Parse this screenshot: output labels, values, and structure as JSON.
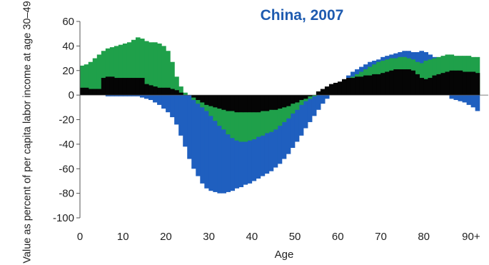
{
  "chart_data": {
    "type": "area",
    "title": "China, 2007",
    "xlabel": "Age",
    "ylabel": "Value as percent of per capita labor income at age 30–49",
    "xlim": [
      0,
      95
    ],
    "ylim": [
      -100,
      60
    ],
    "xticks": [
      0,
      10,
      20,
      30,
      40,
      50,
      60,
      70,
      80,
      90
    ],
    "xtick_labels": [
      "0",
      "10",
      "20",
      "30",
      "40",
      "50",
      "60",
      "70",
      "80",
      "90+"
    ],
    "yticks": [
      60,
      40,
      20,
      0,
      -20,
      -40,
      -60,
      -80,
      -100
    ],
    "ytick_labels": [
      "60",
      "40",
      "20",
      "0",
      "-20",
      "-40",
      "-60",
      "-80",
      "-100"
    ],
    "grid": false,
    "legend": "none",
    "x": [
      0,
      1,
      2,
      3,
      4,
      5,
      6,
      7,
      8,
      9,
      10,
      11,
      12,
      13,
      14,
      15,
      16,
      17,
      18,
      19,
      20,
      21,
      22,
      23,
      24,
      25,
      26,
      27,
      28,
      29,
      30,
      31,
      32,
      33,
      34,
      35,
      36,
      37,
      38,
      39,
      40,
      41,
      42,
      43,
      44,
      45,
      46,
      47,
      48,
      49,
      50,
      51,
      52,
      53,
      54,
      55,
      56,
      57,
      58,
      59,
      60,
      61,
      62,
      63,
      64,
      65,
      66,
      67,
      68,
      69,
      70,
      71,
      72,
      73,
      74,
      75,
      76,
      77,
      78,
      79,
      80,
      81,
      82,
      83,
      84,
      85,
      86,
      87,
      88,
      89,
      90,
      91,
      92
    ],
    "series": [
      {
        "color": "#1f5fbf",
        "values": [
          0,
          0,
          0,
          0,
          0,
          0,
          -1,
          -1,
          -1,
          -1,
          -1,
          -1,
          -1,
          -1,
          -2,
          -3,
          -4,
          -6,
          -8,
          -11,
          -14,
          -18,
          -24,
          -33,
          -42,
          -52,
          -60,
          -66,
          -72,
          -76,
          -78,
          -79,
          -80,
          -80,
          -79,
          -78,
          -76,
          -75,
          -73,
          -72,
          -70,
          -68,
          -66,
          -64,
          -62,
          -59,
          -56,
          -52,
          -48,
          -43,
          -38,
          -33,
          -27,
          -22,
          -17,
          -12,
          -7,
          -3,
          0,
          4,
          8,
          12,
          16,
          19,
          21,
          23,
          25,
          27,
          28,
          29,
          31,
          32,
          33,
          34,
          35,
          36,
          36,
          35,
          35,
          36,
          35,
          33,
          31,
          30,
          30,
          30,
          22,
          20,
          16,
          12,
          8,
          4,
          0
        ],
        "top_values": [
          0,
          0,
          0,
          0,
          0,
          0,
          0,
          0,
          0,
          0,
          0,
          0,
          0,
          0,
          0,
          0,
          0,
          0,
          0,
          0,
          0,
          0,
          0,
          0,
          0,
          0,
          0,
          0,
          0,
          0,
          0,
          0,
          0,
          0,
          0,
          0,
          0,
          0,
          0,
          0,
          0,
          0,
          0,
          0,
          0,
          0,
          0,
          0,
          0,
          0,
          0,
          0,
          0,
          0,
          0,
          0,
          0,
          0,
          0,
          0,
          0,
          0,
          0,
          0,
          0,
          0,
          0,
          0,
          0,
          0,
          0,
          0,
          0,
          0,
          0,
          0,
          0,
          0,
          0,
          0,
          0,
          0,
          0,
          0,
          0,
          0,
          -3,
          -4,
          -5,
          -6,
          -8,
          -10,
          -13
        ]
      },
      {
        "color": "#1fa04a",
        "values": [
          24,
          25,
          27,
          30,
          33,
          36,
          38,
          39,
          40,
          41,
          42,
          43,
          45,
          47,
          46,
          44,
          43,
          43,
          42,
          40,
          36,
          27,
          15,
          7,
          2,
          0,
          -4,
          -7,
          -10,
          -13,
          -17,
          -21,
          -25,
          -28,
          -32,
          -35,
          -37,
          -38,
          -38,
          -37,
          -36,
          -34,
          -33,
          -31,
          -30,
          -28,
          -25,
          -22,
          -19,
          -15,
          -12,
          -8,
          -5,
          -3,
          -1,
          0,
          0,
          0,
          1,
          3,
          6,
          9,
          12,
          15,
          17,
          19,
          21,
          23,
          25,
          27,
          28,
          29,
          30,
          30,
          31,
          31,
          30,
          29,
          27,
          26,
          28,
          29,
          30,
          31,
          32,
          33,
          33,
          32,
          32,
          32,
          32,
          31,
          31
        ]
      },
      {
        "color": "#050505",
        "values": [
          6,
          6,
          5,
          5,
          5,
          14,
          15,
          15,
          14,
          14,
          14,
          14,
          14,
          14,
          14,
          9,
          8,
          7,
          6,
          6,
          6,
          5,
          4,
          2,
          0,
          0,
          -2,
          -4,
          -6,
          -8,
          -9,
          -10,
          -11,
          -12,
          -13,
          -13,
          -14,
          -14,
          -14,
          -14,
          -14,
          -14,
          -13,
          -13,
          -12,
          -12,
          -11,
          -10,
          -9,
          -7,
          -6,
          -4,
          -3,
          -1,
          0,
          3,
          5,
          7,
          9,
          10,
          11,
          13,
          14,
          14,
          15,
          15,
          16,
          16,
          17,
          17,
          18,
          19,
          20,
          21,
          21,
          21,
          21,
          20,
          17,
          14,
          13,
          14,
          16,
          17,
          18,
          19,
          20,
          20,
          20,
          19,
          19,
          19,
          18
        ]
      }
    ]
  }
}
